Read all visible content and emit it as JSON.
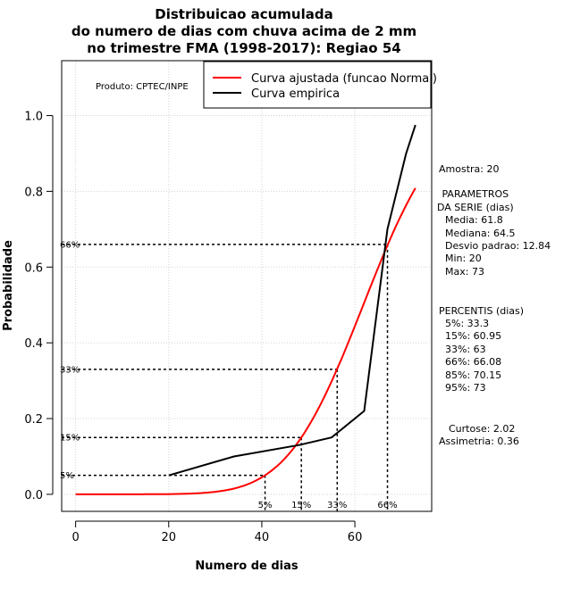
{
  "chart_data": {
    "type": "line",
    "title": [
      "Distribuicao acumulada",
      "do numero de dias com chuva acima de 2 mm",
      "no trimestre FMA (1998-2017): Regiao 54"
    ],
    "xlabel": "Numero de dias",
    "ylabel": "Probabilidade",
    "xlim": [
      -3,
      76.5
    ],
    "ylim": [
      -0.045,
      1.145
    ],
    "x_ticks": [
      0,
      20,
      40,
      60
    ],
    "y_ticks": [
      0.0,
      0.2,
      0.4,
      0.6,
      0.8,
      1.0
    ],
    "x_tick_labels": [
      "0",
      "20",
      "40",
      "60"
    ],
    "y_tick_labels": [
      "0.0",
      "0.2",
      "0.4",
      "0.6",
      "0.8",
      "1.0"
    ],
    "grid": true,
    "producer": "Produto: CPTEC/INPE",
    "legend": {
      "position": "top-right",
      "entries": [
        {
          "label": "Curva ajustada (funcao Normal)",
          "color": "#ff0000"
        },
        {
          "label": "Curva empirica",
          "color": "#000000"
        }
      ]
    },
    "series": [
      {
        "name": "Curva ajustada (funcao Normal)",
        "color": "#ff0000",
        "distribution": "normal",
        "mean": 61.8,
        "sd": 12.84,
        "x_range": [
          0,
          73
        ]
      },
      {
        "name": "Curva empirica",
        "color": "#000000",
        "x": [
          20,
          34,
          48,
          55,
          62,
          67,
          71,
          73
        ],
        "y": [
          0.05,
          0.1,
          0.13,
          0.15,
          0.22,
          0.7,
          0.9,
          0.975
        ]
      }
    ],
    "percentile_guides": [
      {
        "label": "5%",
        "prob": 0.05,
        "x": 40.7
      },
      {
        "label": "15%",
        "prob": 0.15,
        "x": 48.5
      },
      {
        "label": "33%",
        "prob": 0.33,
        "x": 56.2
      },
      {
        "label": "66%",
        "prob": 0.66,
        "x": 67.0
      }
    ],
    "side_panel": {
      "amostra": "Amostra: 20",
      "params_header": [
        " PARAMETROS",
        "DA SERIE (dias)"
      ],
      "params": [
        "Media: 61.8",
        "Mediana: 64.5",
        "Desvio padrao: 12.84",
        "Min: 20",
        "Max: 73"
      ],
      "percentis_header": "PERCENTIS (dias)",
      "percentis": [
        "5%: 33.3",
        "15%: 60.95",
        "33%: 63",
        "66%: 66.08",
        "85%: 70.15",
        "95%: 73"
      ],
      "curtose": "Curtose: 2.02",
      "assimetria": "Assimetria: 0.36"
    }
  }
}
